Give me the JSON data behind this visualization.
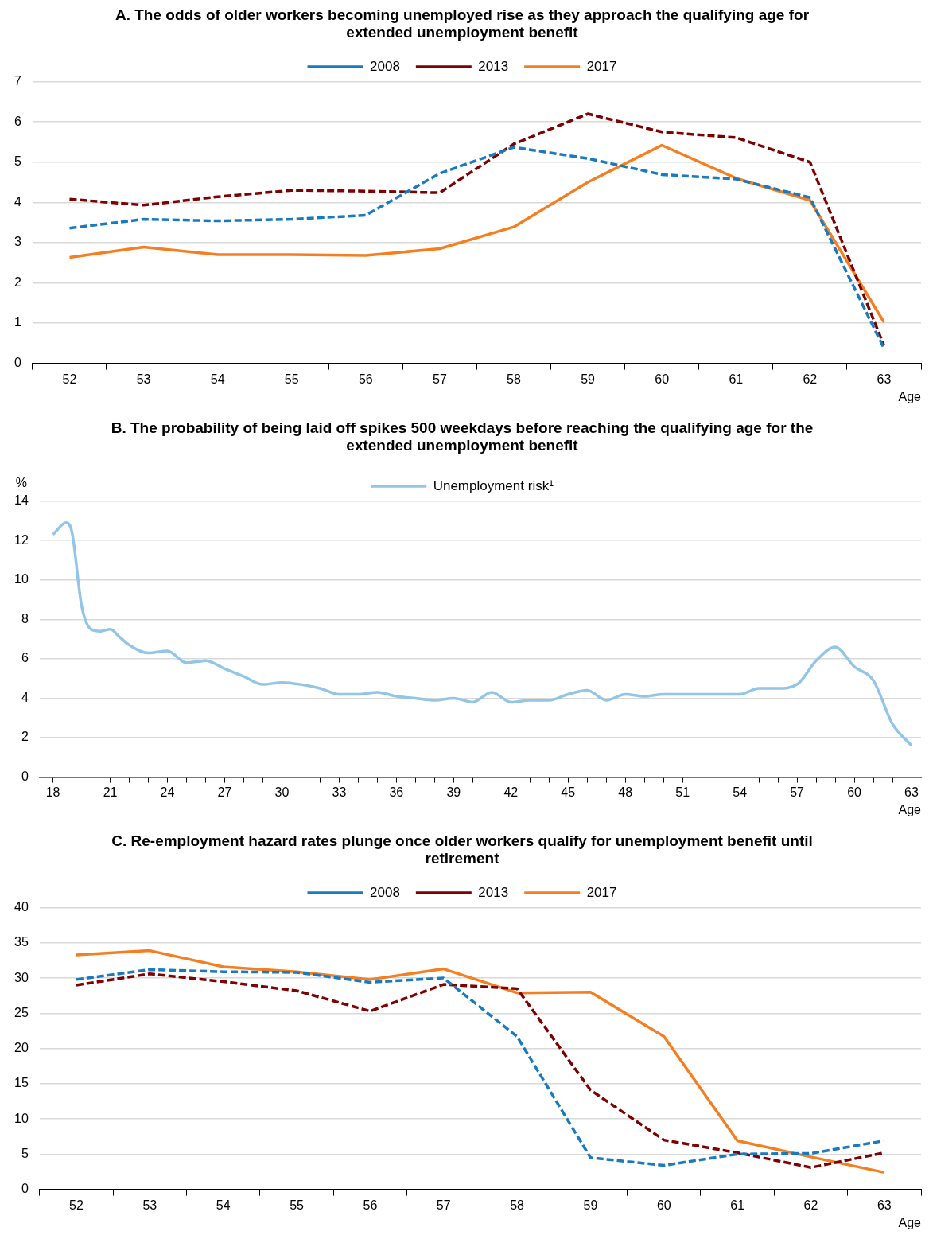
{
  "chart_data": [
    {
      "type": "line",
      "title": "A. The odds of older workers becoming unemployed rise as they approach the qualifying age for extended unemployment benefit",
      "xlabel": "Age",
      "categories": [
        "52",
        "53",
        "54",
        "55",
        "56",
        "57",
        "58",
        "59",
        "60",
        "61",
        "62",
        "63"
      ],
      "ylim": [
        0,
        7
      ],
      "yticks": [
        0,
        1,
        2,
        3,
        4,
        5,
        6,
        7
      ],
      "grid": "y",
      "legend": "top",
      "marker": "none",
      "series": [
        {
          "name": "2008",
          "color": "#1a7ac0",
          "line_style": "dashed",
          "values": [
            3.36,
            3.58,
            3.54,
            3.58,
            3.68,
            4.72,
            5.37,
            5.09,
            4.69,
            4.58,
            4.12,
            0.37
          ]
        },
        {
          "name": "2013",
          "color": "#7f0000",
          "line_style": "dashed",
          "values": [
            4.08,
            3.93,
            4.14,
            4.3,
            4.28,
            4.24,
            5.45,
            6.2,
            5.75,
            5.61,
            5.0,
            0.44
          ]
        },
        {
          "name": "2017",
          "color": "#f57f20",
          "line_style": "solid",
          "values": [
            2.63,
            2.89,
            2.7,
            2.7,
            2.68,
            2.85,
            3.39,
            4.5,
            5.42,
            4.6,
            4.05,
            1.02
          ]
        }
      ]
    },
    {
      "type": "line",
      "title": "B. The probability of being laid off spikes 500 weekdays before reaching the qualifying age for the extended unemployment benefit",
      "xlabel": "Age",
      "ylabel": "%",
      "xlim": [
        17.3,
        63.5
      ],
      "ylim": [
        0,
        14
      ],
      "yticks": [
        0,
        2,
        4,
        6,
        8,
        10,
        12,
        14
      ],
      "grid": "y",
      "legend": "top",
      "marker": "none",
      "xticks": [
        18,
        {
          "value": 19,
          "label": null
        },
        {
          "value": 20,
          "label": null
        },
        21,
        {
          "value": 22,
          "label": null
        },
        {
          "value": 23,
          "label": null
        },
        24,
        {
          "value": 25,
          "label": null
        },
        {
          "value": 26,
          "label": null
        },
        27,
        {
          "value": 28,
          "label": null
        },
        {
          "value": 29,
          "label": null
        },
        30,
        {
          "value": 31,
          "label": null
        },
        {
          "value": 32,
          "label": null
        },
        33,
        {
          "value": 34,
          "label": null
        },
        {
          "value": 35,
          "label": null
        },
        36,
        {
          "value": 37,
          "label": null
        },
        {
          "value": 38,
          "label": null
        },
        39,
        {
          "value": 40,
          "label": null
        },
        {
          "value": 41,
          "label": null
        },
        42,
        {
          "value": 43,
          "label": null
        },
        {
          "value": 44,
          "label": null
        },
        45,
        {
          "value": 46,
          "label": null
        },
        {
          "value": 47,
          "label": null
        },
        48,
        {
          "value": 49,
          "label": null
        },
        {
          "value": 50,
          "label": null
        },
        51,
        {
          "value": 52,
          "label": null
        },
        {
          "value": 53,
          "label": null
        },
        54,
        {
          "value": 55,
          "label": null
        },
        {
          "value": 56,
          "label": null
        },
        57,
        {
          "value": 58,
          "label": null
        },
        {
          "value": 59,
          "label": null
        },
        60,
        {
          "value": 61,
          "label": null
        },
        {
          "value": 62,
          "label": null
        },
        63
      ],
      "series": [
        {
          "name": "Unemployment risk¹",
          "color": "#92c5e6",
          "line_style": "solid",
          "x": [
            18,
            18.7,
            19,
            19.5,
            20,
            20.5,
            21,
            21.5,
            22,
            23,
            24,
            25,
            26,
            27,
            28,
            29,
            30,
            31,
            32,
            33,
            34,
            35,
            36,
            37,
            38,
            39,
            40,
            41,
            42,
            43,
            44,
            45,
            46,
            47,
            48,
            49,
            50,
            51,
            52,
            53,
            54,
            55,
            56,
            57,
            58,
            59,
            60,
            61,
            62,
            63
          ],
          "values": [
            12.3,
            12.9,
            12.4,
            8.7,
            7.5,
            7.4,
            7.5,
            7.1,
            6.7,
            6.3,
            6.4,
            5.8,
            5.9,
            5.5,
            5.1,
            4.7,
            4.8,
            4.7,
            4.5,
            4.2,
            4.2,
            4.3,
            4.1,
            4.0,
            3.9,
            4.0,
            3.8,
            4.3,
            3.8,
            3.9,
            3.9,
            4.2,
            4.4,
            3.9,
            4.2,
            4.1,
            4.2,
            4.2,
            4.2,
            4.2,
            4.2,
            4.5,
            4.5,
            4.7,
            5.9,
            6.6,
            5.6,
            4.9,
            2.7,
            1.6
          ]
        }
      ]
    },
    {
      "type": "line",
      "title": "C. Re-employment hazard rates plunge once older workers qualify for unemployment benefit until retirement",
      "xlabel": "Age",
      "categories": [
        "52",
        "53",
        "54",
        "55",
        "56",
        "57",
        "58",
        "59",
        "60",
        "61",
        "62",
        "63"
      ],
      "ylim": [
        0,
        40
      ],
      "yticks": [
        0,
        5,
        10,
        15,
        20,
        25,
        30,
        35,
        40
      ],
      "grid": "y",
      "legend": "top",
      "marker": "none",
      "series": [
        {
          "name": "2008",
          "color": "#1a7ac0",
          "line_style": "dashed",
          "values": [
            29.8,
            31.2,
            30.9,
            30.8,
            29.4,
            30.0,
            21.7,
            4.5,
            3.4,
            5.0,
            5.1,
            6.9
          ]
        },
        {
          "name": "2013",
          "color": "#7f0000",
          "line_style": "dashed",
          "values": [
            29.0,
            30.6,
            29.5,
            28.2,
            25.3,
            29.1,
            28.5,
            14.1,
            7.0,
            5.2,
            3.1,
            5.2
          ]
        },
        {
          "name": "2017",
          "color": "#f57f20",
          "line_style": "solid",
          "values": [
            33.3,
            33.9,
            31.6,
            30.9,
            29.8,
            31.3,
            27.9,
            28.0,
            21.7,
            6.9,
            4.6,
            2.4
          ]
        }
      ]
    }
  ]
}
